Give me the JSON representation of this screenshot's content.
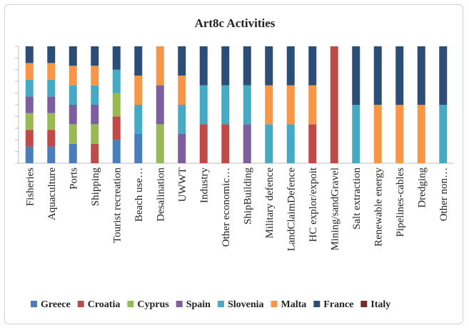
{
  "chart_data": {
    "type": "bar",
    "stacked": true,
    "normalized": true,
    "title": "Art8c Activities",
    "xlabel": "",
    "ylabel": "",
    "ylim": [
      0,
      1
    ],
    "grid": false,
    "legend_position": "bottom",
    "categories": [
      "Fisheries",
      "Aquaculture",
      "Ports",
      "Shipping",
      "Tourist recreation",
      "Beach use…",
      "Desalination",
      "UWWT",
      "Industry",
      "Other economic…",
      "ShipBuilding",
      "Military defence",
      "LandClaimDefence",
      "HC explor/expoit",
      "Mining/sandGravel",
      "Salt extraction",
      "Renewable energy",
      "Pipelines-cables",
      "Dredging",
      "Other non…"
    ],
    "series": [
      {
        "name": "Greece",
        "color": "#4a7ebb",
        "values": [
          1,
          1,
          1,
          0,
          1,
          1,
          0,
          0,
          0,
          0,
          0,
          0,
          0,
          0,
          0,
          0,
          0,
          0,
          0,
          0
        ]
      },
      {
        "name": "Croatia",
        "color": "#be4b48",
        "values": [
          1,
          1,
          0,
          1,
          1,
          0,
          0,
          0,
          1,
          1,
          0,
          0,
          0,
          1,
          1,
          0,
          0,
          0,
          0,
          0
        ]
      },
      {
        "name": "Cyprus",
        "color": "#98b954",
        "values": [
          1,
          1,
          1,
          1,
          1,
          0,
          1,
          0,
          0,
          0,
          0,
          0,
          0,
          0,
          0,
          0,
          0,
          0,
          0,
          0
        ]
      },
      {
        "name": "Spain",
        "color": "#7d5fa0",
        "values": [
          1,
          1,
          1,
          1,
          0,
          0,
          1,
          1,
          0,
          0,
          1,
          0,
          0,
          0,
          0,
          0,
          0,
          0,
          0,
          0
        ]
      },
      {
        "name": "Slovenia",
        "color": "#46aac5",
        "values": [
          1,
          1,
          1,
          1,
          1,
          1,
          0,
          1,
          1,
          1,
          1,
          1,
          1,
          0,
          0,
          1,
          0,
          0,
          0,
          1
        ]
      },
      {
        "name": "Malta",
        "color": "#f79646",
        "values": [
          1,
          1,
          1,
          1,
          0,
          1,
          1,
          1,
          0,
          0,
          0,
          1,
          1,
          1,
          0,
          0,
          1,
          1,
          1,
          0
        ]
      },
      {
        "name": "France",
        "color": "#2c4d75",
        "values": [
          1,
          1,
          1,
          1,
          1,
          1,
          0,
          1,
          1,
          1,
          1,
          1,
          1,
          1,
          0,
          1,
          1,
          1,
          1,
          1
        ]
      },
      {
        "name": "Italy",
        "color": "#772c2a",
        "values": [
          0,
          0,
          0,
          0,
          0,
          0,
          0,
          0,
          0,
          0,
          0,
          0,
          0,
          0,
          0,
          0,
          0,
          0,
          0,
          0
        ]
      }
    ]
  }
}
